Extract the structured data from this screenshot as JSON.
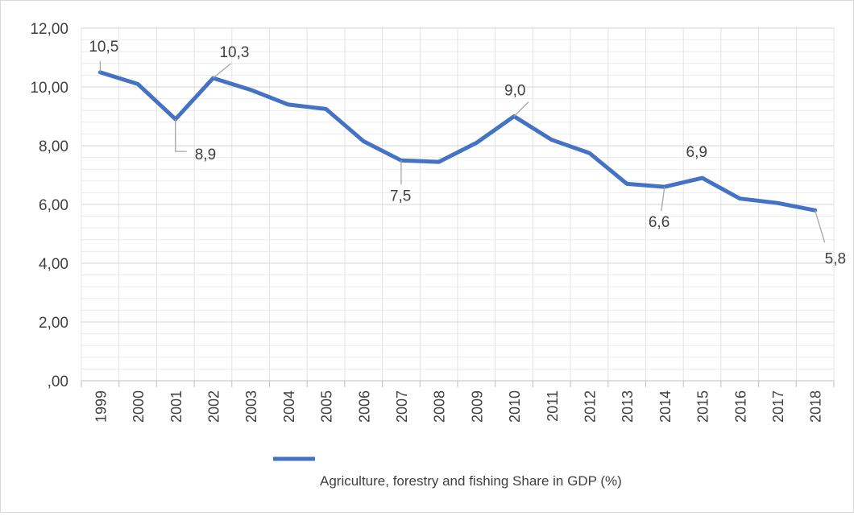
{
  "chart_data": {
    "type": "line",
    "title": "",
    "xlabel": "",
    "ylabel": "",
    "ylim": [
      0,
      12
    ],
    "y_ticks": [
      "12,00",
      "10,00",
      "8,00",
      "6,00",
      "4,00",
      "2,00",
      ",00"
    ],
    "y_tick_values": [
      12,
      10,
      8,
      6,
      4,
      2,
      0
    ],
    "grid": "major-and-minor",
    "legend_position": "bottom",
    "categories": [
      "1999",
      "2000",
      "2001",
      "2002",
      "2003",
      "2004",
      "2005",
      "2006",
      "2007",
      "2008",
      "2009",
      "2010",
      "2011",
      "2012",
      "2013",
      "2014",
      "2015",
      "2016",
      "2017",
      "2018"
    ],
    "series": [
      {
        "name": "Agriculture, forestry and fishing Share in GDP (%)",
        "color": "#4472c4",
        "values": [
          10.5,
          10.1,
          8.9,
          10.3,
          9.9,
          9.4,
          9.25,
          8.15,
          7.5,
          7.45,
          8.1,
          9.0,
          8.2,
          7.75,
          6.7,
          6.6,
          6.9,
          6.2,
          6.05,
          5.8
        ]
      }
    ],
    "data_labels": [
      {
        "index": 0,
        "text": "10,5"
      },
      {
        "index": 2,
        "text": "8,9"
      },
      {
        "index": 3,
        "text": "10,3"
      },
      {
        "index": 8,
        "text": "7,5"
      },
      {
        "index": 11,
        "text": "9,0"
      },
      {
        "index": 15,
        "text": "6,6"
      },
      {
        "index": 16,
        "text": "6,9"
      },
      {
        "index": 19,
        "text": "5,8"
      }
    ]
  }
}
